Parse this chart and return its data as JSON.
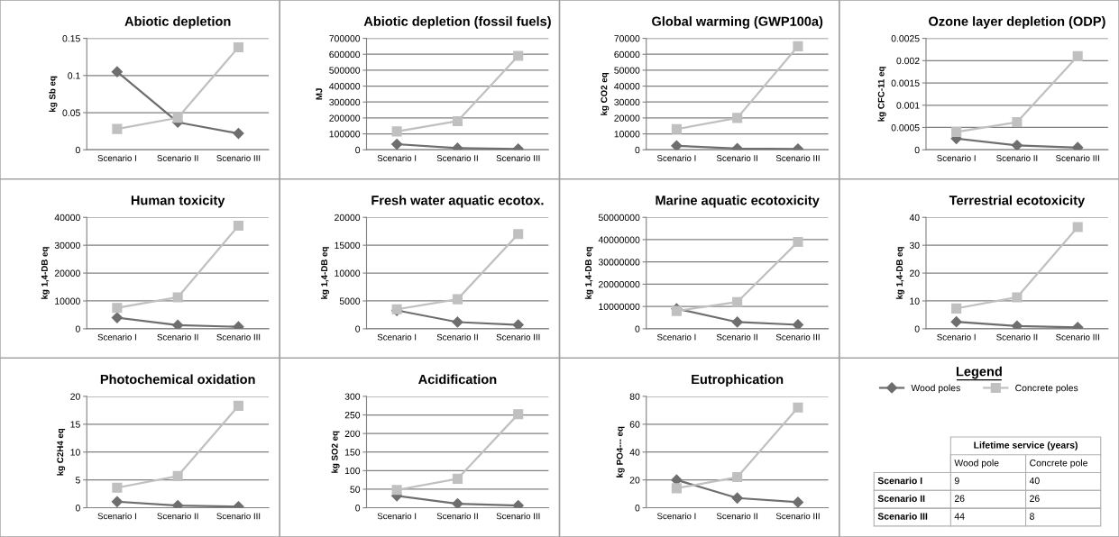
{
  "chart_data": [
    {
      "type": "line",
      "title": "Abiotic depletion",
      "ylabel": "kg Sb eq",
      "categories": [
        "Scenario I",
        "Scenario II",
        "Scenario III"
      ],
      "ylim": [
        0,
        0.15
      ],
      "yticks": [
        0,
        0.05,
        0.1,
        0.15
      ],
      "grid": "y",
      "legend": "bottom right",
      "series": [
        {
          "name": "Wood poles",
          "color": "#6e6e6e",
          "marker": "diamond",
          "values": [
            0.105,
            0.037,
            0.022
          ]
        },
        {
          "name": "Concrete poles",
          "color": "#c0c0c0",
          "marker": "square",
          "values": [
            0.028,
            0.043,
            0.138
          ]
        }
      ]
    },
    {
      "type": "line",
      "title": "Abiotic depletion (fossil fuels)",
      "ylabel": "MJ",
      "categories": [
        "Scenario I",
        "Scenario II",
        "Scenario III"
      ],
      "ylim": [
        0,
        700000
      ],
      "yticks": [
        0,
        100000,
        200000,
        300000,
        400000,
        500000,
        600000,
        700000
      ],
      "grid": "y",
      "series": [
        {
          "color": "#6e6e6e",
          "marker": "diamond",
          "values": [
            35000,
            10000,
            5000
          ]
        },
        {
          "color": "#c0c0c0",
          "marker": "square",
          "values": [
            115000,
            180000,
            590000
          ]
        }
      ]
    },
    {
      "type": "line",
      "title": "Global warming (GWP100a)",
      "ylabel": "kg CO2 eq",
      "categories": [
        "Scenario I",
        "Scenario II",
        "Scenario III"
      ],
      "ylim": [
        0,
        70000
      ],
      "yticks": [
        0,
        10000,
        20000,
        30000,
        40000,
        50000,
        60000,
        70000
      ],
      "grid": "y",
      "series": [
        {
          "color": "#6e6e6e",
          "marker": "diamond",
          "values": [
            2500,
            800,
            500
          ]
        },
        {
          "color": "#c0c0c0",
          "marker": "square",
          "values": [
            13000,
            20000,
            65000
          ]
        }
      ]
    },
    {
      "type": "line",
      "title": "Ozone layer depletion (ODP)",
      "ylabel": "kg CFC-11 eq",
      "categories": [
        "Scenario I",
        "Scenario II",
        "Scenario III"
      ],
      "ylim": [
        0,
        0.0025
      ],
      "yticks": [
        0,
        0.0005,
        0.001,
        0.0015,
        0.002,
        0.0025
      ],
      "grid": "y",
      "series": [
        {
          "color": "#6e6e6e",
          "marker": "diamond",
          "values": [
            0.00025,
            0.0001,
            5e-05
          ]
        },
        {
          "color": "#c0c0c0",
          "marker": "square",
          "values": [
            0.0004,
            0.00062,
            0.0021
          ]
        }
      ]
    },
    {
      "type": "line",
      "title": "Human toxicity",
      "ylabel": "kg 1,4-DB eq",
      "categories": [
        "Scenario I",
        "Scenario II",
        "Scenario III"
      ],
      "ylim": [
        0,
        40000
      ],
      "yticks": [
        0,
        10000,
        20000,
        30000,
        40000
      ],
      "grid": "y",
      "series": [
        {
          "color": "#6e6e6e",
          "marker": "diamond",
          "values": [
            4000,
            1300,
            700
          ]
        },
        {
          "color": "#c0c0c0",
          "marker": "square",
          "values": [
            7500,
            11300,
            37000
          ]
        }
      ]
    },
    {
      "type": "line",
      "title": "Fresh water aquatic ecotox.",
      "ylabel": "kg 1,4-DB eq",
      "categories": [
        "Scenario I",
        "Scenario II",
        "Scenario III"
      ],
      "ylim": [
        0,
        20000
      ],
      "yticks": [
        0,
        5000,
        10000,
        15000,
        20000
      ],
      "grid": "y",
      "series": [
        {
          "color": "#6e6e6e",
          "marker": "diamond",
          "values": [
            3300,
            1200,
            700
          ]
        },
        {
          "color": "#c0c0c0",
          "marker": "square",
          "values": [
            3500,
            5300,
            17000
          ]
        }
      ]
    },
    {
      "type": "line",
      "title": "Marine aquatic ecotoxicity",
      "ylabel": "kg 1,4-DB eq",
      "categories": [
        "Scenario I",
        "Scenario II",
        "Scenario III"
      ],
      "ylim": [
        0,
        50000000
      ],
      "yticks": [
        0,
        10000000,
        20000000,
        30000000,
        40000000,
        50000000
      ],
      "grid": "y",
      "series": [
        {
          "color": "#6e6e6e",
          "marker": "diamond",
          "values": [
            9000000,
            3000000,
            1800000
          ]
        },
        {
          "color": "#c0c0c0",
          "marker": "square",
          "values": [
            8000000,
            12000000,
            39000000
          ]
        }
      ]
    },
    {
      "type": "line",
      "title": "Terrestrial ecotoxicity",
      "ylabel": "kg 1,4-DB eq",
      "categories": [
        "Scenario I",
        "Scenario II",
        "Scenario III"
      ],
      "ylim": [
        0,
        40
      ],
      "yticks": [
        0,
        10,
        20,
        30,
        40
      ],
      "grid": "y",
      "series": [
        {
          "color": "#6e6e6e",
          "marker": "diamond",
          "values": [
            2.5,
            1,
            0.5
          ]
        },
        {
          "color": "#c0c0c0",
          "marker": "square",
          "values": [
            7.3,
            11.3,
            36.5
          ]
        }
      ]
    },
    {
      "type": "line",
      "title": "Photochemical oxidation",
      "ylabel": "kg C2H4 eq",
      "categories": [
        "Scenario I",
        "Scenario II",
        "Scenario III"
      ],
      "ylim": [
        0,
        20
      ],
      "yticks": [
        0,
        5,
        10,
        15,
        20
      ],
      "grid": "y",
      "series": [
        {
          "color": "#6e6e6e",
          "marker": "diamond",
          "values": [
            1.1,
            0.4,
            0.2
          ]
        },
        {
          "color": "#c0c0c0",
          "marker": "square",
          "values": [
            3.6,
            5.7,
            18.3
          ]
        }
      ]
    },
    {
      "type": "line",
      "title": "Acidification",
      "ylabel": "kg SO2 eq",
      "categories": [
        "Scenario I",
        "Scenario II",
        "Scenario III"
      ],
      "ylim": [
        0,
        300
      ],
      "yticks": [
        0,
        50,
        100,
        150,
        200,
        250,
        300
      ],
      "grid": "y",
      "series": [
        {
          "color": "#6e6e6e",
          "marker": "diamond",
          "values": [
            32,
            11,
            6
          ]
        },
        {
          "color": "#c0c0c0",
          "marker": "square",
          "values": [
            48,
            78,
            252
          ]
        }
      ]
    },
    {
      "type": "line",
      "title": "Eutrophication",
      "ylabel": "kg PO4--- eq",
      "categories": [
        "Scenario I",
        "Scenario II",
        "Scenario III"
      ],
      "ylim": [
        0,
        80
      ],
      "yticks": [
        0,
        20,
        40,
        60,
        80
      ],
      "grid": "y",
      "series": [
        {
          "color": "#6e6e6e",
          "marker": "diamond",
          "values": [
            20,
            7,
            4
          ]
        },
        {
          "color": "#c0c0c0",
          "marker": "square",
          "values": [
            14,
            22,
            72
          ]
        }
      ]
    },
    {
      "type": "other",
      "title": "Legend",
      "subtitle": "Lifetime service (years)",
      "categories": [
        "Scenario I",
        "Scenario II",
        "Scenario III"
      ],
      "data_labels": true,
      "series": [
        {
          "name": "Wood pole",
          "values": [
            9,
            26,
            44
          ]
        },
        {
          "name": "Concrete pole",
          "values": [
            40,
            26,
            8
          ]
        }
      ]
    }
  ]
}
